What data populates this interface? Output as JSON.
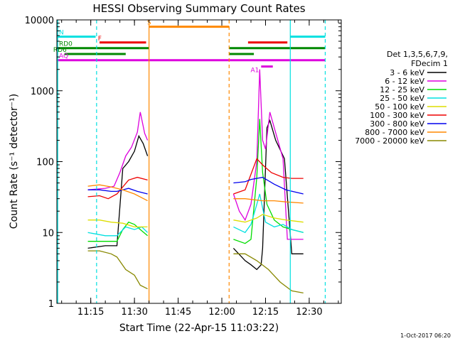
{
  "chart_data": {
    "type": "line",
    "title": "HESSI Observing Summary Count Rates",
    "xlabel": "Start Time (22-Apr-15 11:03:22)",
    "ylabel": "Count Rate (s⁻¹ detector⁻¹)",
    "x_axis": {
      "start": "11:03:22",
      "end": "12:41:00",
      "scale": "time"
    },
    "y_axis": {
      "scale": "log",
      "ylim": [
        1,
        10000
      ]
    },
    "x_ticks": [
      "11:15",
      "11:30",
      "11:45",
      "12:00",
      "12:15",
      "12:30"
    ],
    "y_ticks": [
      "1",
      "10",
      "100",
      "1000",
      "10000"
    ],
    "legend": {
      "placement": "right",
      "header": [
        "Det 1,3,5,6,7,9,",
        "FDecim 1"
      ],
      "entries": [
        {
          "label": "3 - 6 keV",
          "color": "#000000"
        },
        {
          "label": "6 - 12 keV",
          "color": "#dd00dd"
        },
        {
          "label": "12 - 25 keV",
          "color": "#00dd00"
        },
        {
          "label": "25 - 50 keV",
          "color": "#00e0e0"
        },
        {
          "label": "50 - 100 keV",
          "color": "#dddd00"
        },
        {
          "label": "100 - 300 keV",
          "color": "#ee0000"
        },
        {
          "label": "300 - 800 keV",
          "color": "#0000ee"
        },
        {
          "label": "800 - 7000 keV",
          "color": "#ff8800"
        },
        {
          "label": "7000 - 20000 keV",
          "color": "#888800"
        }
      ]
    },
    "series": [
      {
        "name": "3 - 6 keV",
        "color": "#000000",
        "segments": [
          [
            [
              "11:14:00",
              6
            ],
            [
              "11:20:00",
              6.5
            ],
            [
              "11:24:00",
              6.5
            ],
            [
              "11:26:00",
              80
            ],
            [
              "11:28:00",
              100
            ],
            [
              "11:30:00",
              140
            ],
            [
              "11:31:30",
              230
            ],
            [
              "11:33:00",
              180
            ],
            [
              "11:34:30",
              120
            ]
          ],
          [
            [
              "12:04:00",
              6
            ],
            [
              "12:08:00",
              4
            ],
            [
              "12:10:00",
              3.5
            ],
            [
              "12:12:00",
              3
            ],
            [
              "12:13:30",
              3.5
            ],
            [
              "12:14:00",
              6
            ],
            [
              "12:15:30",
              300
            ],
            [
              "12:16:30",
              380
            ],
            [
              "12:18:30",
              200
            ],
            [
              "12:21:30",
              110
            ],
            [
              "12:24:00",
              5
            ],
            [
              "12:28:00",
              5
            ]
          ]
        ]
      },
      {
        "name": "6 - 12 keV",
        "color": "#dd00dd",
        "segments": [
          [
            [
              "11:14:00",
              40
            ],
            [
              "11:20:00",
              42
            ],
            [
              "11:23:00",
              45
            ],
            [
              "11:25:00",
              70
            ],
            [
              "11:27:00",
              120
            ],
            [
              "11:29:00",
              160
            ],
            [
              "11:31:00",
              260
            ],
            [
              "11:32:00",
              500
            ],
            [
              "11:33:30",
              250
            ],
            [
              "11:34:30",
              200
            ]
          ],
          [
            [
              "12:04:00",
              35
            ],
            [
              "12:06:00",
              20
            ],
            [
              "12:08:00",
              15
            ],
            [
              "12:10:00",
              25
            ],
            [
              "12:12:00",
              100
            ],
            [
              "12:13:00",
              2000
            ],
            [
              "12:14:00",
              200
            ],
            [
              "12:15:00",
              150
            ],
            [
              "12:16:30",
              500
            ],
            [
              "12:18:00",
              300
            ],
            [
              "12:21:00",
              110
            ],
            [
              "12:22:30",
              8
            ],
            [
              "12:28:00",
              8
            ]
          ]
        ]
      },
      {
        "name": "12 - 25 keV",
        "color": "#00dd00",
        "segments": [
          [
            [
              "11:14:00",
              7.5
            ],
            [
              "11:20:00",
              7.5
            ],
            [
              "11:24:00",
              7.5
            ],
            [
              "11:26:00",
              11
            ],
            [
              "11:28:00",
              14
            ],
            [
              "11:30:00",
              13
            ],
            [
              "11:32:00",
              11
            ],
            [
              "11:34:30",
              9
            ]
          ],
          [
            [
              "12:04:00",
              8
            ],
            [
              "12:08:00",
              7
            ],
            [
              "12:10:00",
              8
            ],
            [
              "12:12:00",
              60
            ],
            [
              "12:13:00",
              400
            ],
            [
              "12:14:00",
              70
            ],
            [
              "12:15:30",
              25
            ],
            [
              "12:18:00",
              15
            ],
            [
              "12:21:00",
              12
            ],
            [
              "12:24:00",
              11
            ],
            [
              "12:28:00",
              10
            ]
          ]
        ]
      },
      {
        "name": "25 - 50 keV",
        "color": "#00e0e0",
        "segments": [
          [
            [
              "11:14:00",
              10
            ],
            [
              "11:20:00",
              9
            ],
            [
              "11:24:00",
              9
            ],
            [
              "11:27:00",
              12
            ],
            [
              "11:30:00",
              11
            ],
            [
              "11:32:30",
              12
            ],
            [
              "11:34:30",
              10
            ]
          ],
          [
            [
              "12:04:00",
              12
            ],
            [
              "12:08:00",
              10
            ],
            [
              "12:10:00",
              13
            ],
            [
              "12:12:00",
              25
            ],
            [
              "12:13:00",
              35
            ],
            [
              "12:15:00",
              14
            ],
            [
              "12:18:00",
              12
            ],
            [
              "12:21:00",
              13
            ],
            [
              "12:24:00",
              11
            ],
            [
              "12:28:00",
              10
            ]
          ]
        ]
      },
      {
        "name": "50 - 100 keV",
        "color": "#dddd00",
        "segments": [
          [
            [
              "11:14:00",
              15
            ],
            [
              "11:18:00",
              15
            ],
            [
              "11:22:00",
              14
            ],
            [
              "11:26:00",
              13.5
            ],
            [
              "11:30:00",
              12
            ],
            [
              "11:34:30",
              12
            ]
          ],
          [
            [
              "12:04:00",
              15
            ],
            [
              "12:08:00",
              14
            ],
            [
              "12:12:00",
              16
            ],
            [
              "12:14:00",
              18
            ],
            [
              "12:18:00",
              16
            ],
            [
              "12:22:00",
              15
            ],
            [
              "12:28:00",
              14
            ]
          ]
        ]
      },
      {
        "name": "100 - 300 keV",
        "color": "#ee0000",
        "segments": [
          [
            [
              "11:14:00",
              32
            ],
            [
              "11:18:00",
              33
            ],
            [
              "11:21:00",
              30
            ],
            [
              "11:24:00",
              35
            ],
            [
              "11:28:00",
              55
            ],
            [
              "11:31:00",
              60
            ],
            [
              "11:34:30",
              55
            ]
          ],
          [
            [
              "12:04:00",
              35
            ],
            [
              "12:08:00",
              40
            ],
            [
              "12:12:00",
              110
            ],
            [
              "12:14:00",
              90
            ],
            [
              "12:17:00",
              70
            ],
            [
              "12:21:00",
              60
            ],
            [
              "12:24:00",
              58
            ],
            [
              "12:28:00",
              58
            ]
          ]
        ]
      },
      {
        "name": "300 - 800 keV",
        "color": "#0000ee",
        "segments": [
          [
            [
              "11:14:00",
              40
            ],
            [
              "11:18:00",
              40
            ],
            [
              "11:22:00",
              38
            ],
            [
              "11:24:00",
              38
            ],
            [
              "11:26:00",
              40
            ],
            [
              "11:28:00",
              42
            ],
            [
              "11:31:00",
              38
            ],
            [
              "11:34:30",
              35
            ]
          ],
          [
            [
              "12:04:00",
              50
            ],
            [
              "12:08:00",
              52
            ],
            [
              "12:10:00",
              56
            ],
            [
              "12:14:00",
              60
            ],
            [
              "12:18:00",
              48
            ],
            [
              "12:22:00",
              40
            ],
            [
              "12:28:00",
              35
            ]
          ]
        ]
      },
      {
        "name": "800 - 7000 keV",
        "color": "#ff8800",
        "segments": [
          [
            [
              "11:14:00",
              45
            ],
            [
              "11:18:00",
              47
            ],
            [
              "11:22:00",
              44
            ],
            [
              "11:26:00",
              40
            ],
            [
              "11:30:00",
              35
            ],
            [
              "11:34:30",
              28
            ]
          ],
          [
            [
              "12:04:00",
              30
            ],
            [
              "12:08:00",
              30
            ],
            [
              "12:14:00",
              28
            ],
            [
              "12:18:00",
              28
            ],
            [
              "12:22:00",
              27
            ],
            [
              "12:28:00",
              26
            ]
          ]
        ]
      },
      {
        "name": "7000 - 20000 keV",
        "color": "#888800",
        "segments": [
          [
            [
              "11:14:00",
              5.5
            ],
            [
              "11:18:00",
              5.5
            ],
            [
              "11:22:00",
              5
            ],
            [
              "11:24:00",
              4.5
            ],
            [
              "11:27:00",
              3
            ],
            [
              "11:30:00",
              2.5
            ],
            [
              "11:32:00",
              1.8
            ],
            [
              "11:34:30",
              1.6
            ]
          ],
          [
            [
              "12:04:00",
              5
            ],
            [
              "12:08:00",
              5
            ],
            [
              "12:12:00",
              4
            ],
            [
              "12:16:00",
              3
            ],
            [
              "12:20:00",
              2
            ],
            [
              "12:24:00",
              1.5
            ],
            [
              "12:28:00",
              1.4
            ]
          ]
        ]
      }
    ],
    "flag_bars": [
      {
        "label": "N",
        "color": "#00e0e0",
        "y": 5800,
        "segments": [
          [
            "11:03:22",
            "11:16:40"
          ],
          [
            "12:23:30",
            "12:35:30"
          ]
        ]
      },
      {
        "label": "S",
        "color": "#ff8800",
        "y": 8000,
        "segments": [
          [
            "11:35:00",
            "12:02:30"
          ]
        ]
      },
      {
        "label": "F",
        "color": "#ee0000",
        "y": 4800,
        "segments": [
          [
            "11:18:00",
            "11:34:00"
          ],
          [
            "12:09:00",
            "12:22:30"
          ]
        ]
      },
      {
        "label": "RD0",
        "color": "#008800",
        "y": 4000,
        "segments": [
          [
            "11:03:22",
            "11:35:00"
          ],
          [
            "12:02:30",
            "12:35:30"
          ]
        ]
      },
      {
        "label": "RD6",
        "color": "#008800",
        "y": 3300,
        "segments": [
          [
            "11:06:00",
            "11:27:00"
          ],
          [
            "12:02:30",
            "12:11:00"
          ]
        ]
      },
      {
        "label": "AQ",
        "color": "#dd00dd",
        "y": 2700,
        "segments": [
          [
            "11:03:22",
            "12:35:30"
          ]
        ]
      },
      {
        "label": "A1",
        "color": "#dd00dd",
        "y": 2200,
        "segments": [
          [
            "12:13:30",
            "12:17:30"
          ]
        ]
      }
    ],
    "vertical_lines": [
      {
        "time": "11:03:40",
        "color": "#00e0e0",
        "style": "solid"
      },
      {
        "time": "11:17:00",
        "color": "#00e0e0",
        "style": "dashed"
      },
      {
        "time": "11:35:00",
        "color": "#ff8800",
        "style": "solid"
      },
      {
        "time": "12:02:30",
        "color": "#ff8800",
        "style": "dashed"
      },
      {
        "time": "12:23:30",
        "color": "#00e0e0",
        "style": "solid"
      },
      {
        "time": "12:35:30",
        "color": "#00e0e0",
        "style": "dashed"
      }
    ]
  },
  "footer_timestamp": "1-Oct-2017 06:20"
}
